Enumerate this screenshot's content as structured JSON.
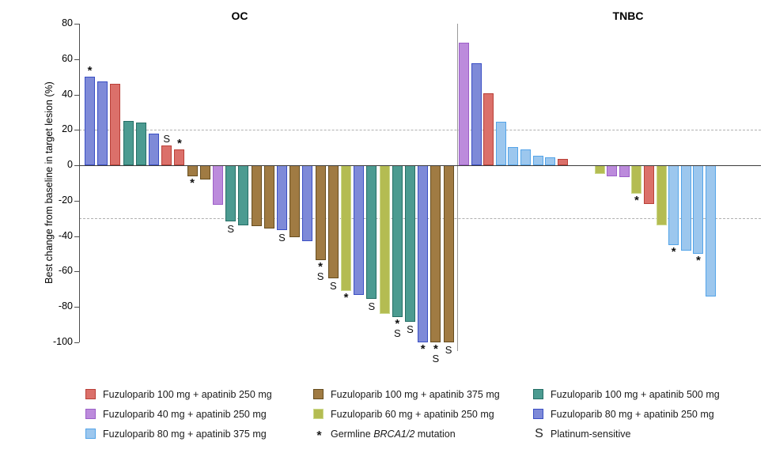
{
  "chart_data": {
    "type": "bar",
    "variant": "waterfall",
    "title": "",
    "ylabel": "Best change from baseline in target lesion (%)",
    "ylim": [
      -100,
      80
    ],
    "yticks": [
      80,
      60,
      40,
      20,
      0,
      -20,
      -40,
      -60,
      -80,
      -100
    ],
    "reference_lines": [
      20,
      -30
    ],
    "grid": "dashed-reference-only",
    "legend_position": "bottom",
    "marker_meaning": {
      "asterisk": "Germline BRCA1/2 mutation",
      "S": "Platinum-sensitive"
    },
    "colors": {
      "red": {
        "fill": "#DB706A",
        "border": "#B94038",
        "label": "Fuzuloparib 100 mg + apatinib 250 mg"
      },
      "purple": {
        "fill": "#BC8BDC",
        "border": "#9C5FC8",
        "label": "Fuzuloparib 40 mg + apatinib 250 mg"
      },
      "lightblue": {
        "fill": "#9CC7EE",
        "border": "#54A4E8",
        "label": "Fuzuloparib 80 mg + apatinib 375 mg"
      },
      "brown": {
        "fill": "#A07B43",
        "border": "#664D1F",
        "label": "Fuzuloparib 100 mg + apatinib 375 mg"
      },
      "olive": {
        "fill": "#B4BC52",
        "border": "#CBD98B",
        "label": "Fuzuloparib 60 mg + apatinib 250 mg"
      },
      "teal": {
        "fill": "#4C9B91",
        "border": "#256F66",
        "label": "Fuzuloparib 100 mg + apatinib 500 mg"
      },
      "indigo": {
        "fill": "#7E8AD8",
        "border": "#3A4FC4",
        "label": "Fuzuloparib 80 mg + apatinib 250 mg"
      }
    },
    "panels": [
      {
        "title": "OC",
        "bars": [
          {
            "v": 50,
            "c": "indigo",
            "m": "*"
          },
          {
            "v": 47.5,
            "c": "indigo",
            "m": ""
          },
          {
            "v": 46,
            "c": "red",
            "m": ""
          },
          {
            "v": 25,
            "c": "teal",
            "m": ""
          },
          {
            "v": 24,
            "c": "teal",
            "m": ""
          },
          {
            "v": 18,
            "c": "indigo",
            "m": ""
          },
          {
            "v": 11,
            "c": "red",
            "m": "S"
          },
          {
            "v": 9,
            "c": "red",
            "m": "*"
          },
          {
            "v": -6,
            "c": "brown",
            "m": "*"
          },
          {
            "v": -8,
            "c": "brown",
            "m": ""
          },
          {
            "v": -22.5,
            "c": "purple",
            "m": ""
          },
          {
            "v": -31.5,
            "c": "teal",
            "m": "S"
          },
          {
            "v": -34,
            "c": "teal",
            "m": ""
          },
          {
            "v": -34.5,
            "c": "brown",
            "m": ""
          },
          {
            "v": -35.5,
            "c": "brown",
            "m": ""
          },
          {
            "v": -36.5,
            "c": "indigo",
            "m": "S"
          },
          {
            "v": -40.5,
            "c": "brown",
            "m": ""
          },
          {
            "v": -43,
            "c": "indigo",
            "m": ""
          },
          {
            "v": -53.5,
            "c": "brown",
            "m": "*S"
          },
          {
            "v": -64,
            "c": "brown",
            "m": "S"
          },
          {
            "v": -71,
            "c": "olive",
            "m": "*"
          },
          {
            "v": -73,
            "c": "indigo",
            "m": ""
          },
          {
            "v": -75.5,
            "c": "teal",
            "m": "S"
          },
          {
            "v": -84,
            "c": "olive",
            "m": ""
          },
          {
            "v": -85.5,
            "c": "teal",
            "m": "*S"
          },
          {
            "v": -88.5,
            "c": "teal",
            "m": "S"
          },
          {
            "v": -100,
            "c": "indigo",
            "m": "*"
          },
          {
            "v": -100,
            "c": "brown",
            "m": "*S"
          },
          {
            "v": -100,
            "c": "brown",
            "m": "S"
          }
        ]
      },
      {
        "title": "TNBC",
        "bars": [
          {
            "slot": 0,
            "v": 69.5,
            "c": "purple",
            "m": ""
          },
          {
            "slot": 1,
            "v": 57.5,
            "c": "indigo",
            "m": ""
          },
          {
            "slot": 2,
            "v": 40.5,
            "c": "red",
            "m": ""
          },
          {
            "slot": 3,
            "v": 24.5,
            "c": "lightblue",
            "m": ""
          },
          {
            "slot": 4,
            "v": 10.5,
            "c": "lightblue",
            "m": ""
          },
          {
            "slot": 5,
            "v": 9,
            "c": "lightblue",
            "m": ""
          },
          {
            "slot": 6,
            "v": 5.5,
            "c": "lightblue",
            "m": ""
          },
          {
            "slot": 7,
            "v": 4.5,
            "c": "lightblue",
            "m": ""
          },
          {
            "slot": 8,
            "v": 3.5,
            "c": "red",
            "m": ""
          },
          {
            "slot": 11,
            "v": -5,
            "c": "olive",
            "m": ""
          },
          {
            "slot": 12,
            "v": -6,
            "c": "purple",
            "m": ""
          },
          {
            "slot": 13,
            "v": -6.5,
            "c": "purple",
            "m": ""
          },
          {
            "slot": 14,
            "v": -16,
            "c": "olive",
            "m": "*"
          },
          {
            "slot": 15,
            "v": -22,
            "c": "red",
            "m": ""
          },
          {
            "slot": 16,
            "v": -34,
            "c": "olive",
            "m": ""
          },
          {
            "slot": 17,
            "v": -45,
            "c": "lightblue",
            "m": "*"
          },
          {
            "slot": 18,
            "v": -48,
            "c": "lightblue",
            "m": ""
          },
          {
            "slot": 19,
            "v": -50,
            "c": "lightblue",
            "m": "*"
          },
          {
            "slot": 20,
            "v": -74,
            "c": "lightblue",
            "m": ""
          }
        ]
      }
    ]
  },
  "legend": {
    "asterisk": {
      "glyph": "*",
      "prefix": "Germline ",
      "italic": "BRCA1/2",
      "suffix": " mutation"
    },
    "platinum": {
      "glyph": "S",
      "label": "Platinum-sensitive"
    }
  }
}
